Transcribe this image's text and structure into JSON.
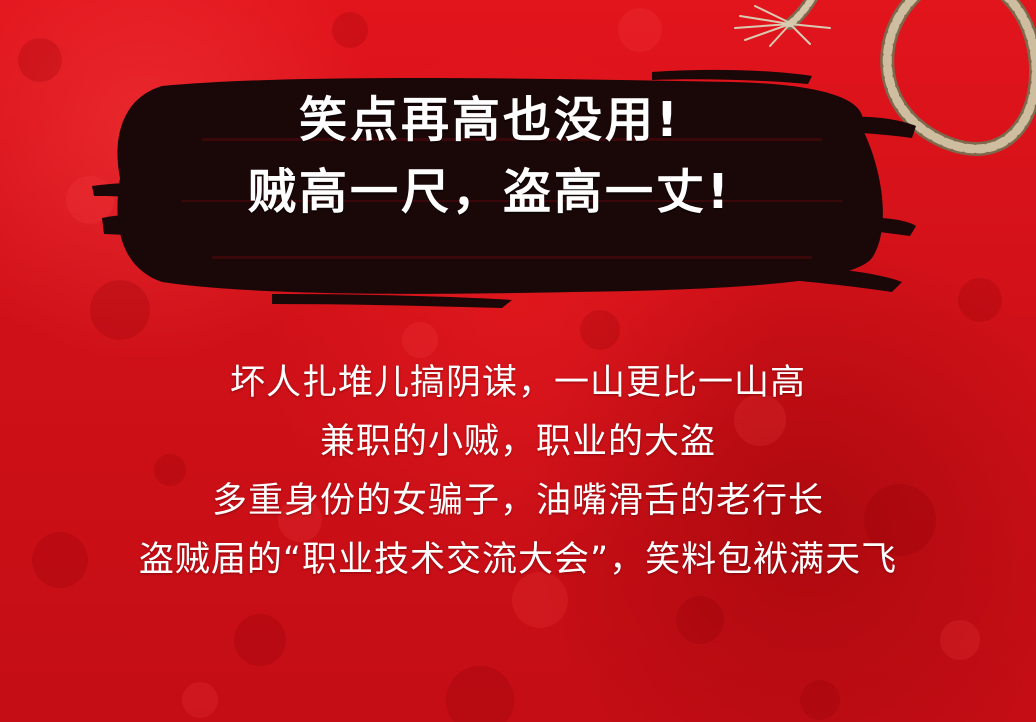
{
  "title": {
    "lines": [
      "笑点再高也没用!",
      "贼高一尺，盗高一丈!"
    ]
  },
  "body": {
    "lines": [
      "坏人扎堆儿搞阴谋，一山更比一山高",
      "兼职的小贼，职业的大盗",
      "多重身份的女骗子，油嘴滑舌的老行长",
      "盗贼届的“职业技术交流大会”，笑料包袱满天飞"
    ]
  },
  "colors": {
    "background": "#d4121a",
    "brush": "#1a0708",
    "rope": "#c9b79a",
    "text": "#ffffff"
  }
}
